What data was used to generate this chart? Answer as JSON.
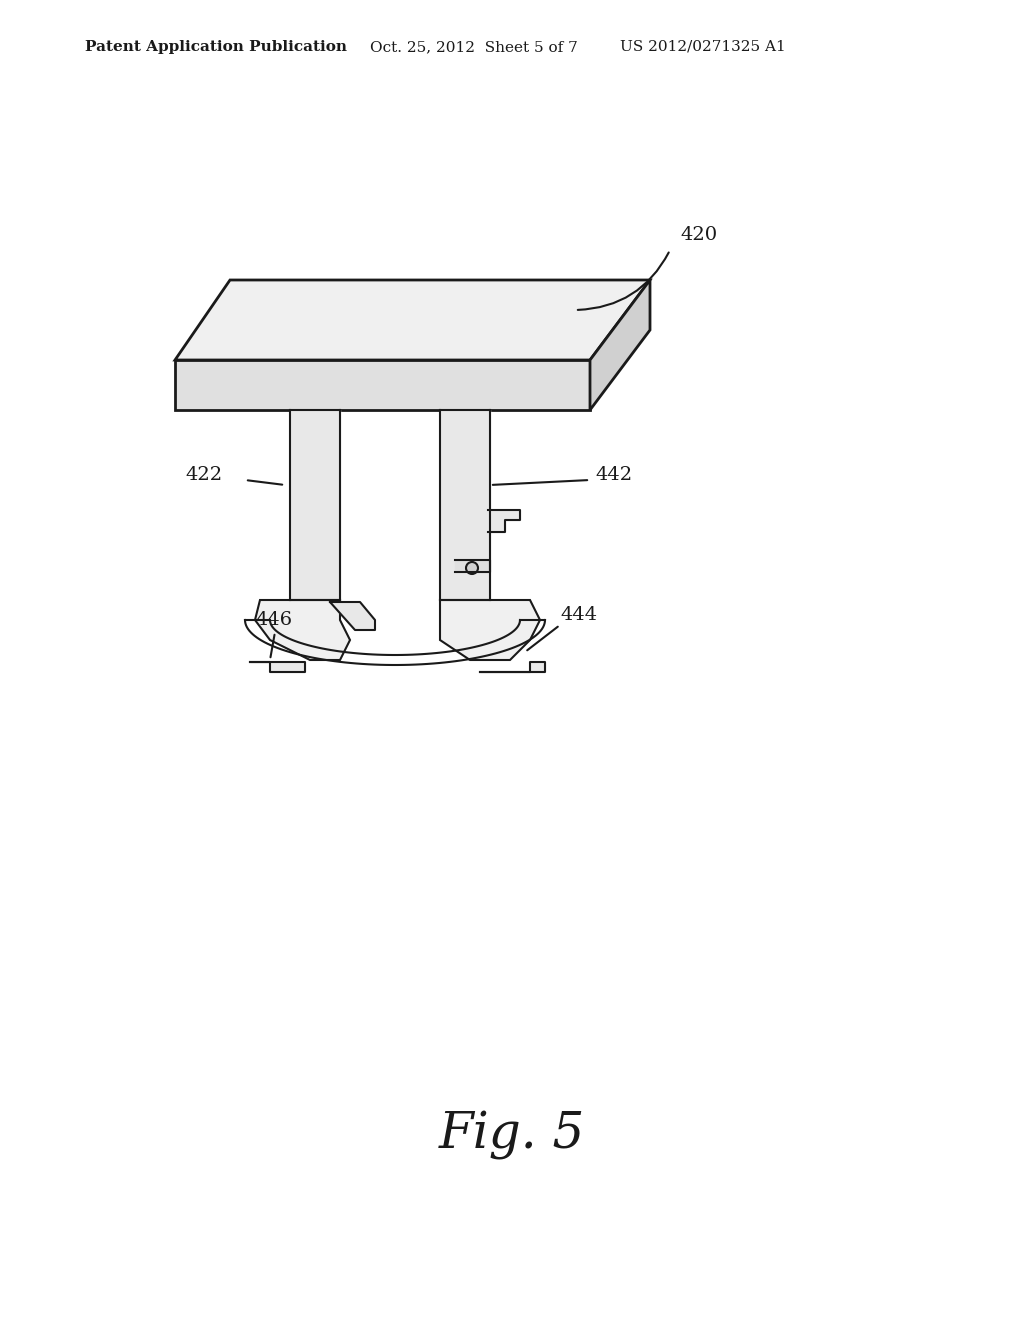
{
  "bg_color": "#ffffff",
  "line_color": "#1a1a1a",
  "header_left": "Patent Application Publication",
  "header_mid": "Oct. 25, 2012  Sheet 5 of 7",
  "header_right": "US 2012/0271325 A1",
  "fig_label": "Fig. 5",
  "label_420": "420",
  "label_422": "422",
  "label_442": "442",
  "label_444": "444",
  "label_446": "446",
  "header_fontsize": 11,
  "fig_label_fontsize": 36,
  "annotation_fontsize": 14
}
